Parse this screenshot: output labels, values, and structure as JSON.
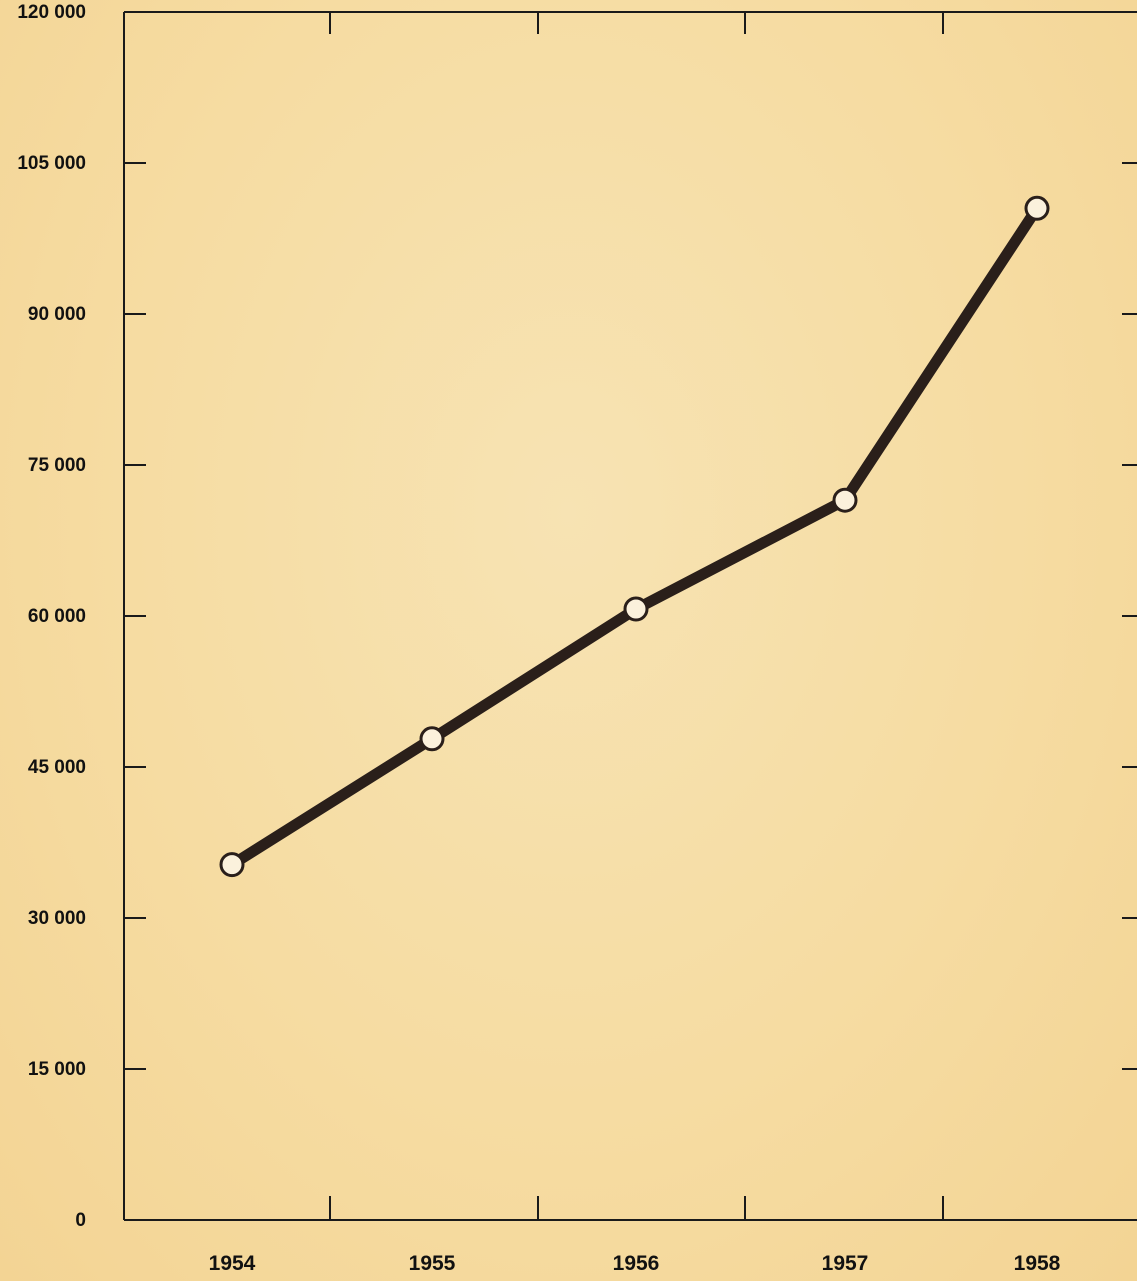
{
  "chart_data": {
    "type": "line",
    "categories": [
      "1954",
      "1955",
      "1956",
      "1957",
      "1958"
    ],
    "series": [
      {
        "values": [
          35300,
          47800,
          60700,
          71500,
          100500
        ]
      }
    ],
    "ylim": [
      0,
      120000
    ],
    "yticks": [
      0,
      15000,
      30000,
      45000,
      60000,
      75000,
      90000,
      105000,
      120000
    ],
    "ytick_labels": [
      "0",
      "15 000",
      "30 000",
      "45 000",
      "60 000",
      "75 000",
      "90 000",
      "105 000",
      "120 000"
    ],
    "xtick_labels": [
      "1954",
      "1955",
      "1956",
      "1957",
      "1958"
    ],
    "grid": false,
    "legend": "none",
    "colors": {
      "line": "#2a1f1a",
      "marker_fill": "#fbf1dc",
      "axis": "#1a1a1a",
      "background": "#f6dca2"
    }
  }
}
